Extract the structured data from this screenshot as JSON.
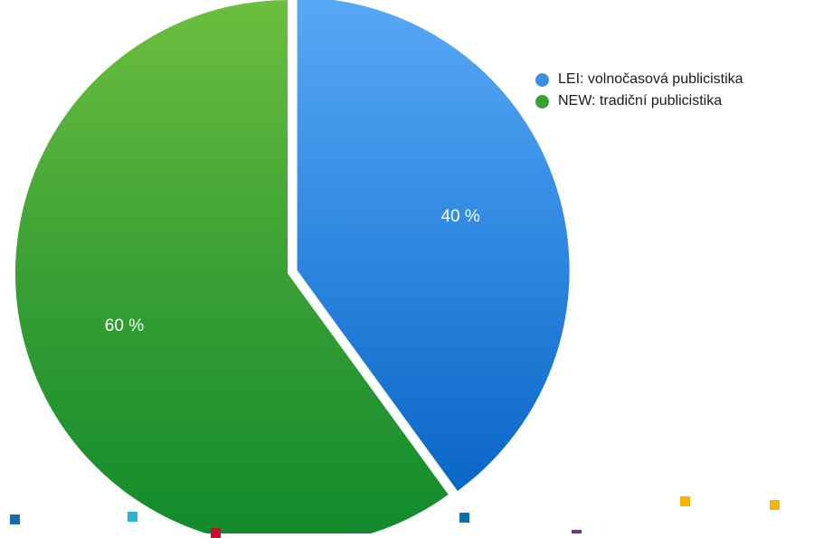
{
  "chart_data": {
    "type": "pie",
    "title": "",
    "slices": [
      {
        "label": "LEI: volnočasová publicistika",
        "value": 40,
        "display": "40 %",
        "color": "#2f88e0",
        "color_light": "#58a8f6",
        "color_dark": "#0a66c6",
        "exploded": true
      },
      {
        "label": "NEW: tradiční publicistika",
        "value": 60,
        "display": "60 %",
        "color": "#3aa035",
        "color_light": "#6cbf3e",
        "color_dark": "#108a2c",
        "exploded": false
      }
    ],
    "legend_position": "top-right",
    "start_angle_deg": 0,
    "direction": "clockwise"
  },
  "decorations": {
    "marker_colors": [
      "#0a6fb4",
      "#27b6d8",
      "#c4122a",
      "#0a6fb4",
      "#6b3a8c",
      "#f4b400",
      "#f4b400"
    ]
  }
}
